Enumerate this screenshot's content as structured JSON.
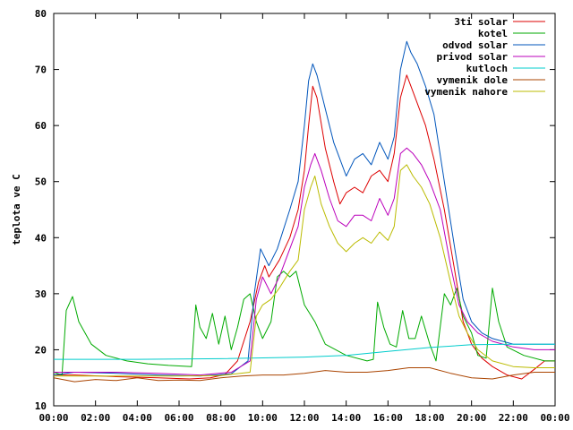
{
  "chart_data": {
    "type": "line",
    "title": "",
    "xlabel": "",
    "ylabel": "teplota ve C",
    "xlim": [
      0,
      24
    ],
    "ylim": [
      10,
      80
    ],
    "grid": false,
    "legend_position": "top-right",
    "x_ticks": [
      {
        "value": 0,
        "label": "00:00"
      },
      {
        "value": 2,
        "label": "02:00"
      },
      {
        "value": 4,
        "label": "04:00"
      },
      {
        "value": 6,
        "label": "06:00"
      },
      {
        "value": 8,
        "label": "08:00"
      },
      {
        "value": 10,
        "label": "10:00"
      },
      {
        "value": 12,
        "label": "12:00"
      },
      {
        "value": 14,
        "label": "14:00"
      },
      {
        "value": 16,
        "label": "16:00"
      },
      {
        "value": 18,
        "label": "18:00"
      },
      {
        "value": 20,
        "label": "20:00"
      },
      {
        "value": 22,
        "label": "22:00"
      },
      {
        "value": 24,
        "label": "00:00"
      }
    ],
    "y_ticks": [
      {
        "value": 10,
        "label": "10"
      },
      {
        "value": 20,
        "label": "20"
      },
      {
        "value": 30,
        "label": "30"
      },
      {
        "value": 40,
        "label": "40"
      },
      {
        "value": 50,
        "label": "50"
      },
      {
        "value": 60,
        "label": "60"
      },
      {
        "value": 70,
        "label": "70"
      },
      {
        "value": 80,
        "label": "80"
      }
    ],
    "series": [
      {
        "name": "3ti solar",
        "color": "#dd0000",
        "points": [
          [
            0,
            15.5
          ],
          [
            1,
            15.5
          ],
          [
            3,
            15.2
          ],
          [
            5,
            15.0
          ],
          [
            6.5,
            14.8
          ],
          [
            7.5,
            15.0
          ],
          [
            8.2,
            15.6
          ],
          [
            8.8,
            18
          ],
          [
            9.4,
            25
          ],
          [
            9.8,
            32
          ],
          [
            10.1,
            35
          ],
          [
            10.3,
            33
          ],
          [
            10.8,
            36
          ],
          [
            11.3,
            40
          ],
          [
            11.7,
            45
          ],
          [
            12,
            52
          ],
          [
            12.2,
            60
          ],
          [
            12.4,
            67
          ],
          [
            12.6,
            65
          ],
          [
            13,
            56
          ],
          [
            13.4,
            50
          ],
          [
            13.7,
            46
          ],
          [
            14,
            48
          ],
          [
            14.4,
            49
          ],
          [
            14.8,
            48
          ],
          [
            15.2,
            51
          ],
          [
            15.6,
            52
          ],
          [
            16,
            50
          ],
          [
            16.3,
            55
          ],
          [
            16.6,
            65
          ],
          [
            16.9,
            69
          ],
          [
            17.1,
            67
          ],
          [
            17.4,
            64
          ],
          [
            17.8,
            60
          ],
          [
            18.2,
            54
          ],
          [
            18.7,
            45
          ],
          [
            19.2,
            34
          ],
          [
            19.6,
            25
          ],
          [
            20,
            21
          ],
          [
            20.5,
            18.5
          ],
          [
            21,
            17
          ],
          [
            21.7,
            15.5
          ],
          [
            22.4,
            14.8
          ],
          [
            23,
            16.5
          ],
          [
            23.5,
            18
          ],
          [
            24,
            18
          ]
        ]
      },
      {
        "name": "kotel",
        "color": "#00aa00",
        "points": [
          [
            0,
            16
          ],
          [
            0.4,
            15.5
          ],
          [
            0.6,
            27
          ],
          [
            0.9,
            29.5
          ],
          [
            1.2,
            25
          ],
          [
            1.8,
            21
          ],
          [
            2.5,
            19
          ],
          [
            3.5,
            18
          ],
          [
            4.5,
            17.5
          ],
          [
            5.5,
            17.2
          ],
          [
            6.6,
            17
          ],
          [
            6.8,
            28
          ],
          [
            7,
            24
          ],
          [
            7.3,
            22
          ],
          [
            7.6,
            26.5
          ],
          [
            7.9,
            21
          ],
          [
            8.2,
            26
          ],
          [
            8.5,
            20
          ],
          [
            8.8,
            24
          ],
          [
            9.1,
            29
          ],
          [
            9.4,
            30
          ],
          [
            9.7,
            25
          ],
          [
            10,
            22
          ],
          [
            10.4,
            25
          ],
          [
            10.7,
            33
          ],
          [
            11,
            34
          ],
          [
            11.3,
            33
          ],
          [
            11.6,
            34
          ],
          [
            12,
            28
          ],
          [
            12.5,
            25
          ],
          [
            13,
            21
          ],
          [
            13.5,
            20
          ],
          [
            14,
            19
          ],
          [
            15,
            18
          ],
          [
            15.3,
            18.3
          ],
          [
            15.5,
            28.5
          ],
          [
            15.8,
            24
          ],
          [
            16.1,
            21
          ],
          [
            16.4,
            20.5
          ],
          [
            16.7,
            27
          ],
          [
            17,
            22
          ],
          [
            17.3,
            22
          ],
          [
            17.6,
            26
          ],
          [
            18,
            21
          ],
          [
            18.3,
            18
          ],
          [
            18.7,
            30
          ],
          [
            19,
            28
          ],
          [
            19.3,
            31
          ],
          [
            19.6,
            26
          ],
          [
            20,
            23
          ],
          [
            20.3,
            19
          ],
          [
            20.7,
            18.5
          ],
          [
            21,
            31
          ],
          [
            21.3,
            25
          ],
          [
            21.7,
            20.5
          ],
          [
            22.5,
            19
          ],
          [
            23.5,
            18
          ],
          [
            24,
            18
          ]
        ]
      },
      {
        "name": "odvod solar",
        "color": "#0055bb",
        "points": [
          [
            0,
            15.5
          ],
          [
            1,
            16
          ],
          [
            3,
            15.8
          ],
          [
            5,
            15.5
          ],
          [
            7,
            15.3
          ],
          [
            8.5,
            15.7
          ],
          [
            9.3,
            18
          ],
          [
            9.6,
            30
          ],
          [
            9.9,
            38
          ],
          [
            10.3,
            35
          ],
          [
            10.7,
            38
          ],
          [
            11.3,
            45
          ],
          [
            11.7,
            50
          ],
          [
            12,
            60
          ],
          [
            12.2,
            68
          ],
          [
            12.4,
            71
          ],
          [
            12.6,
            69
          ],
          [
            13,
            63
          ],
          [
            13.4,
            57
          ],
          [
            13.7,
            54
          ],
          [
            14,
            51
          ],
          [
            14.4,
            54
          ],
          [
            14.8,
            55
          ],
          [
            15.2,
            53
          ],
          [
            15.6,
            57
          ],
          [
            16,
            54
          ],
          [
            16.3,
            58
          ],
          [
            16.6,
            70
          ],
          [
            16.9,
            75
          ],
          [
            17.1,
            73
          ],
          [
            17.4,
            71
          ],
          [
            17.8,
            67
          ],
          [
            18.2,
            62
          ],
          [
            18.7,
            50
          ],
          [
            19.2,
            38
          ],
          [
            19.6,
            29
          ],
          [
            20,
            25
          ],
          [
            20.5,
            23
          ],
          [
            21,
            22
          ],
          [
            22,
            21
          ],
          [
            23,
            21
          ],
          [
            24,
            21
          ]
        ]
      },
      {
        "name": "privod solar",
        "color": "#bb00bb",
        "points": [
          [
            0,
            16
          ],
          [
            1,
            16
          ],
          [
            3,
            16
          ],
          [
            5,
            15.8
          ],
          [
            7,
            15.5
          ],
          [
            8.5,
            16
          ],
          [
            9.4,
            18
          ],
          [
            9.7,
            29
          ],
          [
            10,
            33
          ],
          [
            10.4,
            30
          ],
          [
            10.8,
            33
          ],
          [
            11.3,
            38
          ],
          [
            11.7,
            42
          ],
          [
            12,
            49
          ],
          [
            12.3,
            53
          ],
          [
            12.5,
            55
          ],
          [
            12.8,
            52
          ],
          [
            13.2,
            47
          ],
          [
            13.6,
            43
          ],
          [
            14,
            42
          ],
          [
            14.4,
            44
          ],
          [
            14.8,
            44
          ],
          [
            15.2,
            43
          ],
          [
            15.6,
            47
          ],
          [
            16,
            44
          ],
          [
            16.3,
            47
          ],
          [
            16.6,
            55
          ],
          [
            16.9,
            56
          ],
          [
            17.2,
            55
          ],
          [
            17.6,
            53
          ],
          [
            18,
            50
          ],
          [
            18.5,
            45
          ],
          [
            19,
            35
          ],
          [
            19.4,
            28
          ],
          [
            19.8,
            25
          ],
          [
            20.3,
            23
          ],
          [
            21,
            21.5
          ],
          [
            22,
            20.5
          ],
          [
            23,
            20
          ],
          [
            24,
            20
          ]
        ]
      },
      {
        "name": "kutloch",
        "color": "#00cccc",
        "points": [
          [
            0,
            18.3
          ],
          [
            4,
            18.3
          ],
          [
            8,
            18.4
          ],
          [
            12,
            18.7
          ],
          [
            14,
            19
          ],
          [
            16,
            19.7
          ],
          [
            18,
            20.4
          ],
          [
            20,
            20.9
          ],
          [
            22,
            21
          ],
          [
            24,
            21
          ]
        ]
      },
      {
        "name": "vymenik dole",
        "color": "#aa4400",
        "points": [
          [
            0,
            15
          ],
          [
            1,
            14.3
          ],
          [
            2,
            14.7
          ],
          [
            3,
            14.5
          ],
          [
            4,
            15
          ],
          [
            5,
            14.5
          ],
          [
            6,
            14.6
          ],
          [
            7,
            14.5
          ],
          [
            8,
            15
          ],
          [
            9,
            15.3
          ],
          [
            10,
            15.5
          ],
          [
            11,
            15.5
          ],
          [
            12,
            15.8
          ],
          [
            13,
            16.3
          ],
          [
            14,
            16
          ],
          [
            15,
            16
          ],
          [
            16,
            16.3
          ],
          [
            17,
            16.8
          ],
          [
            18,
            16.8
          ],
          [
            19,
            15.8
          ],
          [
            20,
            15
          ],
          [
            21,
            14.8
          ],
          [
            22,
            15.5
          ],
          [
            23,
            16
          ],
          [
            24,
            16
          ]
        ]
      },
      {
        "name": "vymenik nahore",
        "color": "#bbbb00",
        "points": [
          [
            0,
            15.3
          ],
          [
            2,
            15.3
          ],
          [
            4,
            15.3
          ],
          [
            6,
            15.3
          ],
          [
            8,
            15.4
          ],
          [
            9.4,
            16
          ],
          [
            9.7,
            26
          ],
          [
            10,
            28
          ],
          [
            10.4,
            29
          ],
          [
            10.8,
            31
          ],
          [
            11.3,
            34
          ],
          [
            11.7,
            36
          ],
          [
            12,
            45
          ],
          [
            12.3,
            49
          ],
          [
            12.5,
            51
          ],
          [
            12.8,
            46
          ],
          [
            13.2,
            42
          ],
          [
            13.6,
            39
          ],
          [
            14,
            37.5
          ],
          [
            14.4,
            39
          ],
          [
            14.8,
            40
          ],
          [
            15.2,
            39
          ],
          [
            15.6,
            41
          ],
          [
            16,
            39.5
          ],
          [
            16.3,
            42
          ],
          [
            16.6,
            52
          ],
          [
            16.9,
            53
          ],
          [
            17.2,
            51
          ],
          [
            17.6,
            49
          ],
          [
            18,
            46
          ],
          [
            18.5,
            40
          ],
          [
            19,
            32
          ],
          [
            19.4,
            26
          ],
          [
            19.8,
            23
          ],
          [
            20.3,
            20
          ],
          [
            21,
            18
          ],
          [
            22,
            17
          ],
          [
            23,
            16.8
          ],
          [
            24,
            16.8
          ]
        ]
      }
    ]
  }
}
